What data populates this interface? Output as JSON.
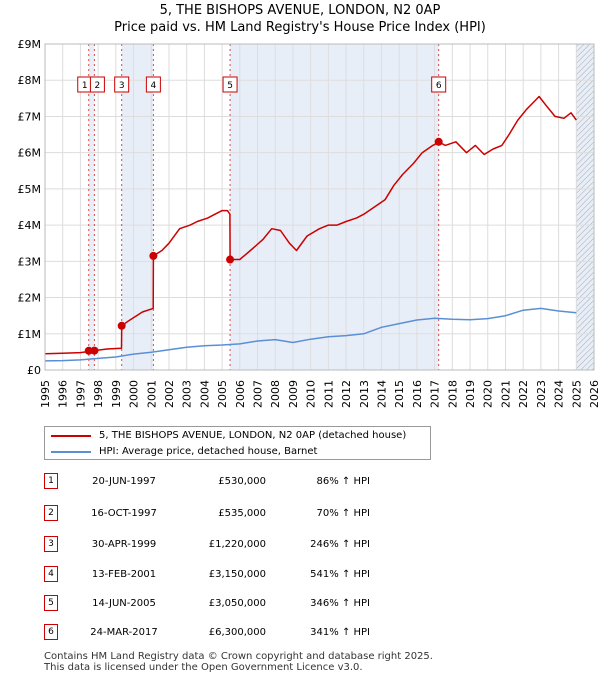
{
  "chart_data": {
    "type": "line",
    "title": "5, THE BISHOPS AVENUE, LONDON, N2 0AP",
    "subtitle": "Price paid vs. HM Land Registry's House Price Index (HPI)",
    "xlim": [
      1995,
      2026
    ],
    "ylim": [
      0,
      9000000
    ],
    "grid": true,
    "x_ticks": [
      "1995",
      "1996",
      "1997",
      "1998",
      "1999",
      "2000",
      "2001",
      "2002",
      "2003",
      "2004",
      "2005",
      "2006",
      "2007",
      "2008",
      "2009",
      "2010",
      "2011",
      "2012",
      "2013",
      "2014",
      "2015",
      "2016",
      "2017",
      "2018",
      "2019",
      "2020",
      "2021",
      "2022",
      "2023",
      "2024",
      "2025",
      "2026"
    ],
    "y_ticks": [
      {
        "value": 0,
        "label": "£0"
      },
      {
        "value": 1000000,
        "label": "£1M"
      },
      {
        "value": 2000000,
        "label": "£2M"
      },
      {
        "value": 3000000,
        "label": "£3M"
      },
      {
        "value": 4000000,
        "label": "£4M"
      },
      {
        "value": 5000000,
        "label": "£5M"
      },
      {
        "value": 6000000,
        "label": "£6M"
      },
      {
        "value": 7000000,
        "label": "£7M"
      },
      {
        "value": 8000000,
        "label": "£8M"
      },
      {
        "value": 9000000,
        "label": "£9M"
      }
    ],
    "shaded_ranges": [
      [
        1997.47,
        1997.79
      ],
      [
        1999.33,
        2001.12
      ],
      [
        2005.45,
        2017.23
      ],
      [
        2025.0,
        2026.0
      ]
    ],
    "hatched_from": 2025.0,
    "series": [
      {
        "name": "5, THE BISHOPS AVENUE, LONDON, N2 0AP (detached house)",
        "color": "#cc0000",
        "x": [
          1995.0,
          1996.0,
          1997.0,
          1997.46,
          1997.47,
          1997.78,
          1997.79,
          1998.5,
          1999.32,
          1999.33,
          1999.7,
          2000.5,
          2001.11,
          2001.12,
          2001.6,
          2002.0,
          2002.6,
          2003.2,
          2003.6,
          2004.2,
          2004.6,
          2005.0,
          2005.3,
          2005.44,
          2005.45,
          2006.0,
          2006.6,
          2007.3,
          2007.8,
          2008.3,
          2008.8,
          2009.2,
          2009.8,
          2010.5,
          2011.0,
          2011.5,
          2012.0,
          2012.6,
          2013.0,
          2013.6,
          2014.2,
          2014.7,
          2015.2,
          2015.8,
          2016.3,
          2016.9,
          2017.22,
          2017.23,
          2017.6,
          2018.2,
          2018.8,
          2019.3,
          2019.8,
          2020.3,
          2020.8,
          2021.2,
          2021.7,
          2022.2,
          2022.6,
          2022.9,
          2023.3,
          2023.8,
          2024.3,
          2024.7,
          2025.0
        ],
        "y": [
          450000,
          460000,
          480000,
          510000,
          530000,
          534000,
          535000,
          580000,
          600000,
          1220000,
          1350000,
          1600000,
          1700000,
          3150000,
          3300000,
          3500000,
          3900000,
          4000000,
          4100000,
          4200000,
          4300000,
          4400000,
          4400000,
          4300000,
          3050000,
          3050000,
          3300000,
          3600000,
          3900000,
          3850000,
          3500000,
          3300000,
          3700000,
          3900000,
          4000000,
          4000000,
          4100000,
          4200000,
          4300000,
          4500000,
          4700000,
          5100000,
          5400000,
          5700000,
          6000000,
          6200000,
          6280000,
          6300000,
          6200000,
          6300000,
          6000000,
          6200000,
          5950000,
          6100000,
          6200000,
          6500000,
          6900000,
          7200000,
          7400000,
          7550000,
          7300000,
          7000000,
          6950000,
          7100000,
          6900000
        ]
      },
      {
        "name": "HPI: Average price, detached house, Barnet",
        "color": "#5a8fd6",
        "x": [
          1995.0,
          1996.0,
          1997.0,
          1998.0,
          1999.0,
          2000.0,
          2001.0,
          2002.0,
          2003.0,
          2004.0,
          2005.0,
          2006.0,
          2007.0,
          2008.0,
          2009.0,
          2010.0,
          2011.0,
          2012.0,
          2013.0,
          2014.0,
          2015.0,
          2016.0,
          2017.0,
          2018.0,
          2019.0,
          2020.0,
          2021.0,
          2022.0,
          2023.0,
          2024.0,
          2025.0
        ],
        "y": [
          250000,
          260000,
          280000,
          320000,
          360000,
          440000,
          490000,
          560000,
          630000,
          670000,
          690000,
          720000,
          800000,
          840000,
          760000,
          850000,
          920000,
          950000,
          1000000,
          1180000,
          1280000,
          1380000,
          1430000,
          1400000,
          1390000,
          1420000,
          1500000,
          1650000,
          1700000,
          1630000,
          1580000
        ]
      }
    ],
    "sales": [
      {
        "id": "1",
        "x": 1997.47,
        "y": 530000
      },
      {
        "id": "2",
        "x": 1997.79,
        "y": 535000
      },
      {
        "id": "3",
        "x": 1999.33,
        "y": 1220000
      },
      {
        "id": "4",
        "x": 2001.12,
        "y": 3150000
      },
      {
        "id": "5",
        "x": 2005.45,
        "y": 3050000
      },
      {
        "id": "6",
        "x": 2017.23,
        "y": 6300000
      }
    ]
  },
  "legend": {
    "property": "5, THE BISHOPS AVENUE, LONDON, N2 0AP (detached house)",
    "hpi": "HPI: Average price, detached house, Barnet"
  },
  "transactions": [
    {
      "id": "1",
      "date": "20-JUN-1997",
      "price": "£530,000",
      "hpi": "86% ↑ HPI"
    },
    {
      "id": "2",
      "date": "16-OCT-1997",
      "price": "£535,000",
      "hpi": "70% ↑ HPI"
    },
    {
      "id": "3",
      "date": "30-APR-1999",
      "price": "£1,220,000",
      "hpi": "246% ↑ HPI"
    },
    {
      "id": "4",
      "date": "13-FEB-2001",
      "price": "£3,150,000",
      "hpi": "541% ↑ HPI"
    },
    {
      "id": "5",
      "date": "14-JUN-2005",
      "price": "£3,050,000",
      "hpi": "346% ↑ HPI"
    },
    {
      "id": "6",
      "date": "24-MAR-2017",
      "price": "£6,300,000",
      "hpi": "341% ↑ HPI"
    }
  ],
  "footer": {
    "line1": "Contains HM Land Registry data © Crown copyright and database right 2025.",
    "line2": "This data is licensed under the Open Government Licence v3.0."
  }
}
